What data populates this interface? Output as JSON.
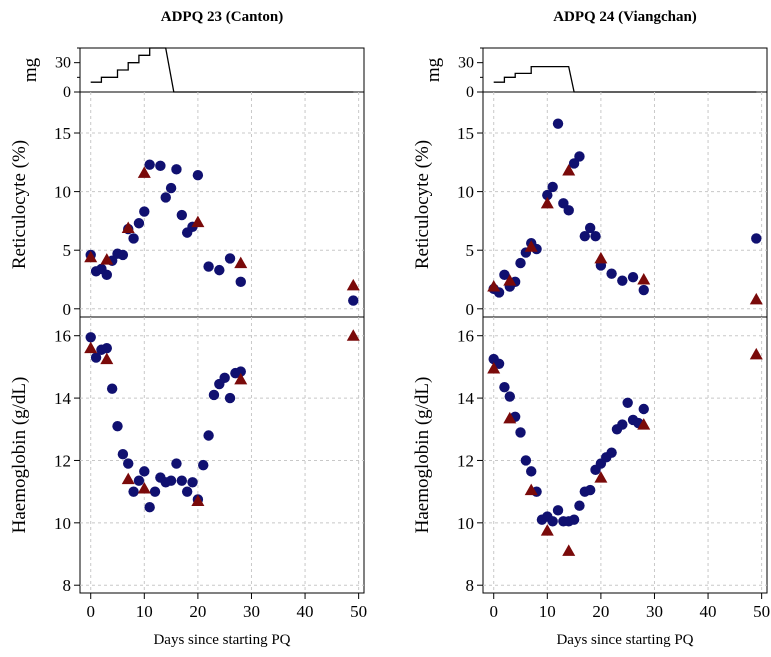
{
  "chart_data": [
    {
      "type": "scatter",
      "title": "ADPQ 23 (Canton)",
      "xlabel": "Days since starting PQ",
      "x_ticks": [
        "0",
        "10",
        "20",
        "30",
        "40",
        "50"
      ],
      "xlim": [
        -2,
        51
      ],
      "colors": {
        "circle": "#101070",
        "triangle": "#7a0a0a"
      },
      "dose": {
        "ylabel": "mg",
        "y_ticks": [
          "0",
          "30"
        ],
        "ylim": [
          0,
          45
        ],
        "x": [
          0,
          2,
          2,
          5,
          5,
          7,
          7,
          9,
          9,
          11,
          11,
          13,
          14,
          15.5,
          49
        ],
        "y": [
          10,
          10,
          15,
          15,
          22.5,
          22.5,
          30,
          30,
          37.5,
          37.5,
          45,
          45,
          45,
          0,
          0
        ]
      },
      "reticulocyte": {
        "ylabel": "Reticulocyte (%)",
        "y_ticks": [
          "0",
          "5",
          "10",
          "15"
        ],
        "ylim": [
          -0.7,
          18.5
        ],
        "circles_x": [
          0,
          1,
          2,
          3,
          4,
          5,
          6,
          7,
          8,
          9,
          10,
          11,
          13,
          14,
          15,
          16,
          17,
          18,
          19,
          20,
          22,
          24,
          26,
          28,
          49
        ],
        "circles_y": [
          4.6,
          3.2,
          3.4,
          2.9,
          4.1,
          4.7,
          4.6,
          6.8,
          6.0,
          7.3,
          8.3,
          12.3,
          12.2,
          9.5,
          10.3,
          11.9,
          8.0,
          6.5,
          7.0,
          11.4,
          3.6,
          3.3,
          4.3,
          2.3,
          0.7
        ],
        "triangles_x": [
          0,
          3,
          7,
          10,
          20,
          28,
          49
        ],
        "triangles_y": [
          4.4,
          4.2,
          6.9,
          11.6,
          7.4,
          3.9,
          2.0
        ]
      },
      "haemoglobin": {
        "ylabel": "Haemoglobin (g/dL)",
        "y_ticks": [
          "8",
          "10",
          "12",
          "14",
          "16"
        ],
        "ylim": [
          7.75,
          16.6
        ],
        "circles_x": [
          0,
          1,
          2,
          3,
          4,
          5,
          6,
          7,
          8,
          9,
          10,
          11,
          12,
          13,
          14,
          15,
          16,
          17,
          18,
          19,
          20,
          21,
          22,
          23,
          24,
          25,
          26,
          27,
          28
        ],
        "circles_y": [
          15.95,
          15.3,
          15.55,
          15.6,
          14.3,
          13.1,
          12.2,
          11.9,
          11.0,
          11.35,
          11.65,
          10.5,
          11.0,
          11.45,
          11.3,
          11.35,
          11.9,
          11.35,
          11.0,
          11.3,
          10.75,
          11.85,
          12.8,
          14.1,
          14.45,
          14.65,
          14.0,
          14.8,
          14.85
        ],
        "triangles_x": [
          0,
          3,
          7,
          10,
          20,
          28,
          49
        ],
        "triangles_y": [
          15.6,
          15.25,
          11.4,
          11.1,
          10.7,
          14.6,
          16.0
        ]
      }
    },
    {
      "type": "scatter",
      "title": "ADPQ 24 (Viangchan)",
      "xlabel": "Days since starting PQ",
      "x_ticks": [
        "0",
        "10",
        "20",
        "30",
        "40",
        "50"
      ],
      "xlim": [
        -2,
        51
      ],
      "colors": {
        "circle": "#101070",
        "triangle": "#7a0a0a"
      },
      "dose": {
        "ylabel": "mg",
        "y_ticks": [
          "0",
          "30"
        ],
        "ylim": [
          0,
          45
        ],
        "x": [
          0,
          2,
          2,
          4,
          4,
          7,
          7,
          9,
          9,
          14,
          14,
          15,
          49
        ],
        "y": [
          10,
          10,
          15,
          15,
          19,
          19,
          26,
          26,
          26,
          26,
          26,
          0,
          0
        ]
      },
      "reticulocyte": {
        "ylabel": "Reticulocyte (%)",
        "y_ticks": [
          "0",
          "5",
          "10",
          "15"
        ],
        "ylim": [
          -0.7,
          18.5
        ],
        "circles_x": [
          0,
          1,
          2,
          3,
          4,
          5,
          6,
          7,
          8,
          10,
          11,
          12,
          13,
          14,
          15,
          16,
          17,
          18,
          19,
          20,
          22,
          24,
          26,
          28,
          49
        ],
        "circles_y": [
          1.7,
          1.4,
          2.9,
          1.9,
          2.3,
          3.9,
          4.8,
          5.6,
          5.1,
          9.7,
          10.4,
          15.8,
          9.0,
          8.4,
          12.4,
          13.0,
          6.2,
          6.9,
          6.2,
          3.7,
          3.0,
          2.4,
          2.7,
          1.6,
          6.0
        ],
        "triangles_x": [
          0,
          3,
          7,
          10,
          14,
          20,
          28,
          49
        ],
        "triangles_y": [
          1.9,
          2.4,
          5.3,
          9.0,
          11.8,
          4.3,
          2.5,
          0.8
        ]
      },
      "haemoglobin": {
        "ylabel": "Haemoglobin (g/dL)",
        "y_ticks": [
          "8",
          "10",
          "12",
          "14",
          "16"
        ],
        "ylim": [
          7.75,
          16.6
        ],
        "circles_x": [
          0,
          1,
          2,
          3,
          4,
          5,
          6,
          7,
          8,
          9,
          10,
          11,
          12,
          13,
          14,
          15,
          16,
          17,
          18,
          19,
          20,
          21,
          22,
          23,
          24,
          25,
          26,
          27,
          28
        ],
        "circles_y": [
          15.25,
          15.1,
          14.35,
          14.05,
          13.4,
          12.9,
          12.0,
          11.65,
          11.0,
          10.1,
          10.2,
          10.05,
          10.4,
          10.05,
          10.05,
          10.1,
          10.55,
          11.0,
          11.05,
          11.7,
          11.9,
          12.1,
          12.25,
          13.0,
          13.15,
          13.85,
          13.3,
          13.2,
          13.65
        ],
        "triangles_x": [
          0,
          3,
          7,
          10,
          14,
          20,
          28,
          49
        ],
        "triangles_y": [
          14.95,
          13.35,
          11.05,
          9.75,
          9.1,
          11.45,
          13.15,
          15.4
        ]
      }
    }
  ]
}
